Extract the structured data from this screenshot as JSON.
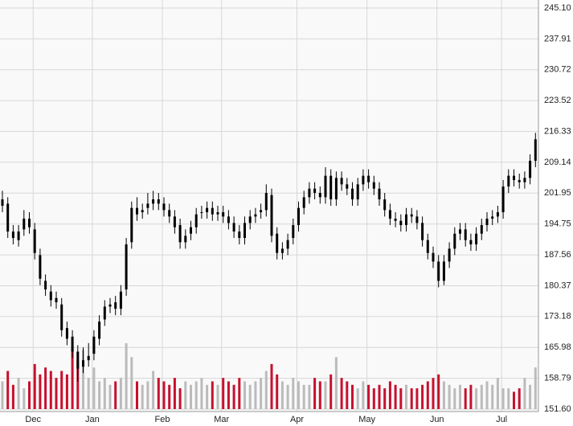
{
  "chart_data": {
    "type": "candlestick",
    "categories": [
      null,
      null,
      null,
      null,
      null,
      null,
      "Dec",
      null,
      null,
      null,
      null,
      null,
      null,
      null,
      null,
      null,
      null,
      "Jan",
      null,
      null,
      null,
      null,
      null,
      null,
      null,
      null,
      null,
      null,
      null,
      null,
      "Feb",
      null,
      null,
      null,
      null,
      null,
      null,
      null,
      null,
      null,
      null,
      "Mar",
      null,
      null,
      null,
      null,
      null,
      null,
      null,
      null,
      null,
      null,
      null,
      null,
      null,
      "Apr",
      null,
      null,
      null,
      null,
      null,
      null,
      null,
      null,
      null,
      null,
      null,
      null,
      "May",
      null,
      null,
      null,
      null,
      null,
      null,
      null,
      null,
      null,
      null,
      null,
      null,
      "Jun",
      null,
      null,
      null,
      null,
      null,
      null,
      null,
      null,
      null,
      null,
      null,
      "Jul",
      null,
      null,
      null,
      null,
      null,
      null
    ],
    "open": [
      199,
      199.5,
      193,
      191,
      193.5,
      196,
      193.5,
      187.5,
      181.5,
      179,
      177.5,
      176,
      170.5,
      168.5,
      165,
      161.5,
      163,
      164.5,
      168,
      172.5,
      175.5,
      176.5,
      175,
      179.5,
      190.5,
      198.5,
      197.5,
      198.5,
      199.5,
      200.5,
      199.5,
      198,
      196.5,
      194.5,
      190.5,
      192.5,
      194,
      197.5,
      197.5,
      198.5,
      197,
      197.5,
      196.5,
      195,
      193,
      191.5,
      195,
      196.5,
      197.5,
      198,
      201.5,
      192.5,
      188,
      189,
      191.5,
      194.5,
      198.5,
      201,
      203,
      202,
      201,
      206,
      200.5,
      205.5,
      204,
      203,
      200.5,
      204,
      206,
      204.5,
      203,
      200.5,
      198,
      196,
      195.5,
      194.5,
      197,
      196.5,
      195,
      191,
      188,
      186,
      181.5,
      186,
      189,
      192.5,
      193.5,
      191,
      190,
      192.5,
      194.5,
      196,
      196.5,
      197.5,
      203.5,
      206,
      205,
      204.5,
      205.5,
      209.5
    ],
    "high": [
      202.5,
      201,
      194.5,
      194.5,
      198,
      197.5,
      195,
      189,
      183,
      180.5,
      179,
      177.5,
      172,
      170,
      166.5,
      166,
      167,
      170,
      173.5,
      177,
      177.5,
      178,
      180.5,
      191.5,
      200,
      201,
      199.5,
      202,
      202.5,
      202,
      201,
      199.5,
      198,
      196,
      193.5,
      195.5,
      198.5,
      199,
      200,
      200,
      199,
      199,
      198,
      196.5,
      194.5,
      196.5,
      198,
      198.5,
      199.5,
      204,
      203,
      194,
      190.5,
      192.5,
      196,
      200,
      202.5,
      204.5,
      204.5,
      203.5,
      208,
      207.5,
      207,
      207,
      205.5,
      204.5,
      205.5,
      207.5,
      207.5,
      206,
      204.5,
      202,
      199.5,
      197.5,
      197,
      198.5,
      198.5,
      198,
      196.5,
      192.5,
      189.5,
      187.5,
      187.5,
      190.5,
      194,
      195,
      195,
      192.5,
      194,
      196,
      197.5,
      198,
      199,
      205,
      207.5,
      207.5,
      206.5,
      207,
      211,
      216
    ],
    "low": [
      197.5,
      191.5,
      190,
      189.5,
      192,
      192.5,
      186.5,
      180.5,
      178,
      175.5,
      175,
      168.5,
      166.5,
      163.5,
      158,
      160,
      161.5,
      163,
      166.5,
      171,
      174,
      173.5,
      173.5,
      178,
      189,
      195.5,
      196,
      197,
      198,
      198,
      196.5,
      195,
      192.5,
      189,
      189,
      191,
      192.5,
      196,
      196,
      195.5,
      195.5,
      195,
      193.5,
      191.5,
      190,
      190,
      193.5,
      195,
      196,
      196.5,
      190.5,
      186.5,
      186.5,
      187.5,
      190,
      193,
      197,
      199.5,
      200.5,
      199.5,
      199.5,
      199,
      199,
      202.5,
      201.5,
      199,
      199,
      202.5,
      203,
      201.5,
      199,
      196.5,
      194.5,
      194,
      193,
      193,
      195,
      193.5,
      189.5,
      186.5,
      184.5,
      180,
      180.5,
      184.5,
      187.5,
      191,
      189.5,
      188.5,
      188.5,
      191,
      193,
      194.5,
      195,
      196,
      202,
      203.5,
      203,
      203,
      204,
      208
    ],
    "close": [
      200.5,
      193,
      191.5,
      193,
      196,
      194,
      188,
      182,
      179.5,
      177,
      176.5,
      170,
      168,
      165,
      161,
      163,
      164,
      168.5,
      172,
      175.5,
      176,
      175,
      179,
      190,
      198.5,
      197,
      198,
      199.5,
      200.5,
      199.5,
      198,
      196.5,
      194,
      190.5,
      192,
      194,
      197,
      197.5,
      198.5,
      197,
      197.5,
      196.5,
      195,
      193,
      191.5,
      195,
      196.5,
      197,
      198,
      202,
      192,
      188,
      189,
      191,
      194.5,
      198.5,
      201,
      203,
      202,
      201,
      206,
      200.5,
      205.5,
      204,
      203,
      200.5,
      204,
      206,
      204.5,
      203,
      200.5,
      198,
      196,
      195.5,
      194.5,
      197,
      196.5,
      195,
      191,
      188,
      186,
      181.5,
      186,
      189,
      192.5,
      193.5,
      191,
      190,
      192.5,
      194.5,
      196,
      196.5,
      197.5,
      203.5,
      206,
      205,
      204.5,
      205.5,
      209.5,
      214.5
    ],
    "volume": [
      40,
      55,
      35,
      45,
      30,
      40,
      65,
      50,
      60,
      55,
      45,
      55,
      50,
      90,
      70,
      85,
      45,
      60,
      40,
      45,
      35,
      40,
      45,
      95,
      75,
      40,
      35,
      40,
      55,
      45,
      40,
      35,
      45,
      30,
      40,
      35,
      40,
      45,
      35,
      40,
      35,
      45,
      40,
      35,
      45,
      40,
      35,
      40,
      45,
      55,
      65,
      50,
      40,
      35,
      45,
      40,
      35,
      35,
      45,
      40,
      40,
      50,
      75,
      45,
      40,
      35,
      30,
      40,
      35,
      30,
      35,
      30,
      40,
      35,
      30,
      35,
      30,
      30,
      35,
      40,
      45,
      50,
      40,
      35,
      30,
      35,
      30,
      35,
      30,
      35,
      40,
      35,
      45,
      30,
      30,
      25,
      30,
      45,
      35,
      60
    ],
    "candle_color": "#000000",
    "volume_up_color": "#bbbbbb",
    "volume_down_color": "#c8102e",
    "ylim": [
      151.6,
      245.1
    ],
    "yticks": [
      {
        "value": 245.1,
        "label": "245.10"
      },
      237.91,
      230.72,
      223.52,
      216.33,
      209.14,
      201.95,
      194.75,
      187.56,
      180.37,
      173.18,
      165.98,
      158.79,
      {
        "value": 151.6,
        "label": "151.60"
      }
    ],
    "grid": true
  }
}
